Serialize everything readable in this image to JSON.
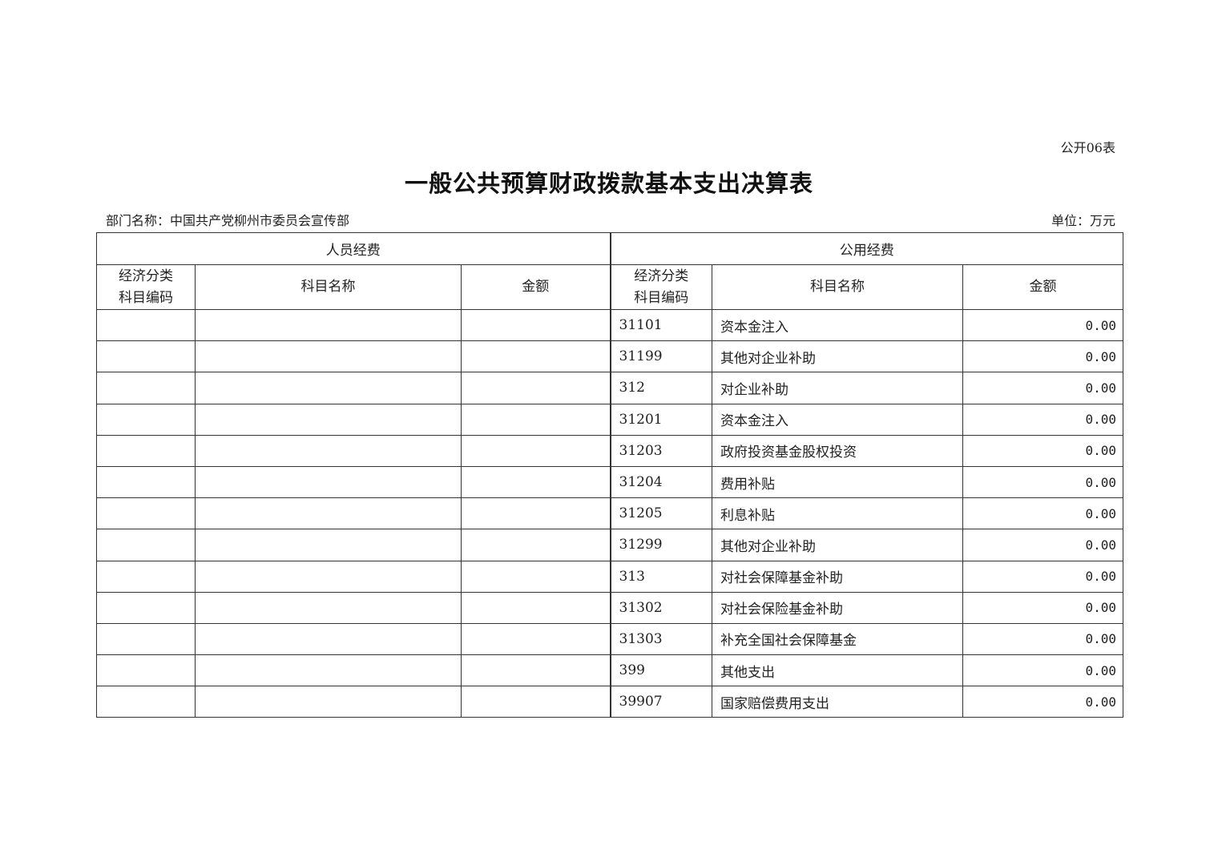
{
  "form_number": "公开06表",
  "title": "一般公共预算财政拨款基本支出决算表",
  "department": "部门名称：中国共产党柳州市委员会宣传部",
  "unit": "单位：万元",
  "table": {
    "group_headers": [
      "人员经费",
      "公用经费"
    ],
    "column_headers": {
      "code_line1": "经济分类",
      "code_line2": "科目编码",
      "name": "科目名称",
      "amount": "金额"
    },
    "personnel_rows": [],
    "public_rows": [
      {
        "code": "31101",
        "name": "资本金注入",
        "amount": "0.00"
      },
      {
        "code": "31199",
        "name": "其他对企业补助",
        "amount": "0.00"
      },
      {
        "code": "312",
        "name": "对企业补助",
        "amount": "0.00"
      },
      {
        "code": "31201",
        "name": "资本金注入",
        "amount": "0.00"
      },
      {
        "code": "31203",
        "name": "政府投资基金股权投资",
        "amount": "0.00"
      },
      {
        "code": "31204",
        "name": "费用补贴",
        "amount": "0.00"
      },
      {
        "code": "31205",
        "name": "利息补贴",
        "amount": "0.00"
      },
      {
        "code": "31299",
        "name": "其他对企业补助",
        "amount": "0.00"
      },
      {
        "code": "313",
        "name": "对社会保障基金补助",
        "amount": "0.00"
      },
      {
        "code": "31302",
        "name": "对社会保险基金补助",
        "amount": "0.00"
      },
      {
        "code": "31303",
        "name": "补充全国社会保障基金",
        "amount": "0.00"
      },
      {
        "code": "399",
        "name": "其他支出",
        "amount": "0.00"
      },
      {
        "code": "39907",
        "name": "国家赔偿费用支出",
        "amount": "0.00"
      }
    ]
  }
}
